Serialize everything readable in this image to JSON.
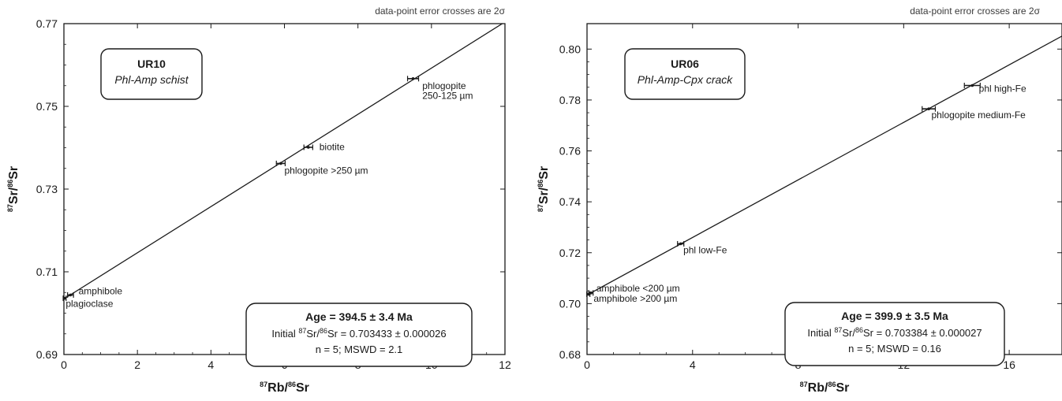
{
  "chart_data": [
    {
      "type": "scatter",
      "note": "data-point error crosses are 2σ",
      "sample_box": {
        "title": "UR10",
        "subtitle": "Phl-Amp schist"
      },
      "xlabel": {
        "sup1": "87",
        "mid": "Rb/",
        "sup2": "86",
        "end": "Sr"
      },
      "ylabel": {
        "sup1": "87",
        "mid": "Sr/",
        "sup2": "86",
        "end": "Sr"
      },
      "xlim": [
        0,
        12
      ],
      "ylim": [
        0.69,
        0.77
      ],
      "x_ticks": [
        0,
        2,
        4,
        6,
        8,
        10,
        12
      ],
      "x_tick_labels": [
        "0",
        "2",
        "4",
        "6",
        "8",
        "10",
        "12"
      ],
      "y_ticks": [
        0.69,
        0.71,
        0.73,
        0.75,
        0.77
      ],
      "y_tick_labels": [
        "0.69",
        "0.71",
        "0.73",
        "0.75",
        "0.77"
      ],
      "isochron": {
        "slope": 0.005581,
        "intercept": 0.703433
      },
      "points": [
        {
          "x": 0.02,
          "y": 0.7036,
          "xerr": 0.04
        },
        {
          "x": 0.18,
          "y": 0.7044,
          "xerr": 0.08
        },
        {
          "x": 5.9,
          "y": 0.7362,
          "xerr": 0.12
        },
        {
          "x": 6.65,
          "y": 0.7401,
          "xerr": 0.12
        },
        {
          "x": 9.5,
          "y": 0.7567,
          "xerr": 0.15
        }
      ],
      "annotations": [
        {
          "text": "amphibole",
          "x": 0.4,
          "y": 0.7046
        },
        {
          "text": "plagioclase",
          "x": 0.05,
          "y": 0.7015
        },
        {
          "text": "phlogopite >250 µm",
          "x": 6.0,
          "y": 0.7337
        },
        {
          "text": "biotite",
          "x": 6.95,
          "y": 0.7394
        },
        {
          "text": "phlogopite",
          "x": 9.75,
          "y": 0.7542
        },
        {
          "text": "250-125 µm",
          "x": 9.75,
          "y": 0.7518
        }
      ],
      "result": {
        "age": "Age = 394.5 ± 3.4 Ma",
        "initial_pre": "Initial ",
        "initial_sup1": "87",
        "initial_mid": "Sr/",
        "initial_sup2": "86",
        "initial_post": "Sr = 0.703433 ± 0.000026",
        "stats": "n = 5; MSWD = 2.1"
      }
    },
    {
      "type": "scatter",
      "note": "data-point error crosses are 2σ",
      "sample_box": {
        "title": "UR06",
        "subtitle": "Phl-Amp-Cpx crack"
      },
      "xlabel": {
        "sup1": "87",
        "mid": "Rb/",
        "sup2": "86",
        "end": "Sr"
      },
      "ylabel": {
        "sup1": "87",
        "mid": "Sr/",
        "sup2": "86",
        "end": "Sr"
      },
      "xlim": [
        0,
        18
      ],
      "ylim": [
        0.68,
        0.81
      ],
      "x_ticks": [
        0,
        4,
        8,
        12,
        16
      ],
      "x_tick_labels": [
        "0",
        "4",
        "8",
        "12",
        "16"
      ],
      "y_ticks": [
        0.68,
        0.7,
        0.72,
        0.74,
        0.76,
        0.78,
        0.8
      ],
      "y_tick_labels": [
        "0.68",
        "0.70",
        "0.72",
        "0.74",
        "0.76",
        "0.78",
        "0.80"
      ],
      "isochron": {
        "slope": 0.005652,
        "intercept": 0.703384
      },
      "points": [
        {
          "x": 0.05,
          "y": 0.7037,
          "xerr": 0.06
        },
        {
          "x": 0.15,
          "y": 0.7042,
          "xerr": 0.08
        },
        {
          "x": 3.55,
          "y": 0.7235,
          "xerr": 0.12
        },
        {
          "x": 12.95,
          "y": 0.7765,
          "xerr": 0.25
        },
        {
          "x": 14.6,
          "y": 0.7857,
          "xerr": 0.3
        }
      ],
      "annotations": [
        {
          "text": "amphibole <200 µm",
          "x": 0.35,
          "y": 0.7048
        },
        {
          "text": "amphibole >200 µm",
          "x": 0.25,
          "y": 0.7008
        },
        {
          "text": "phl low-Fe",
          "x": 3.65,
          "y": 0.7198
        },
        {
          "text": "phlogopite medium-Fe",
          "x": 13.05,
          "y": 0.7728
        },
        {
          "text": "phl high-Fe",
          "x": 14.85,
          "y": 0.7833
        }
      ],
      "result": {
        "age": "Age = 399.9 ± 3.5 Ma",
        "initial_pre": "Initial ",
        "initial_sup1": "87",
        "initial_mid": "Sr/",
        "initial_sup2": "86",
        "initial_post": "Sr = 0.703384 ± 0.000027",
        "stats": "n = 5; MSWD = 0.16"
      }
    }
  ]
}
